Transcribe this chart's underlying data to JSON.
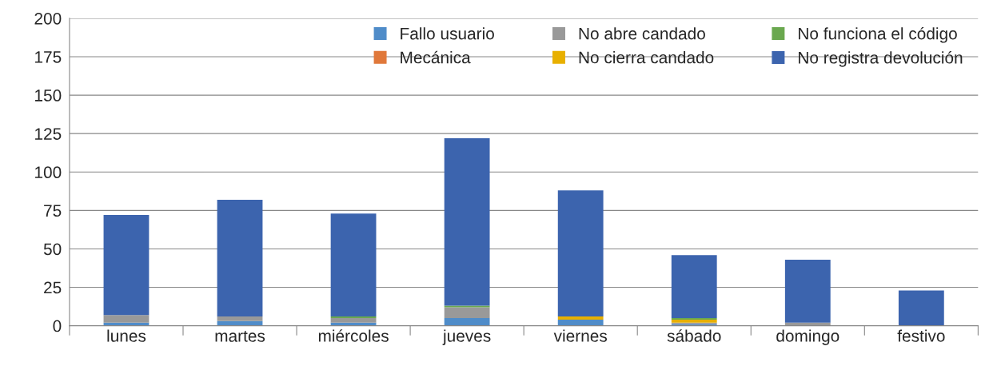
{
  "chart_data": {
    "type": "bar",
    "stacked": true,
    "categories": [
      "lunes",
      "martes",
      "miércoles",
      "jueves",
      "viernes",
      "sábado",
      "domingo",
      "festivo"
    ],
    "series": [
      {
        "name": "Fallo usuario",
        "color": "#4f8cc9",
        "values": [
          2,
          3,
          2,
          5,
          4,
          1,
          0,
          0
        ]
      },
      {
        "name": "Mecánica",
        "color": "#e0783a",
        "values": [
          0,
          0,
          0,
          0,
          0,
          0,
          0,
          0
        ]
      },
      {
        "name": "No abre candado",
        "color": "#999999",
        "values": [
          5,
          3,
          3,
          7,
          0,
          1,
          2,
          0
        ]
      },
      {
        "name": "No cierra candado",
        "color": "#e8b000",
        "values": [
          0,
          0,
          0,
          0,
          2,
          2,
          0,
          0
        ]
      },
      {
        "name": "No funciona el código",
        "color": "#6aa84f",
        "values": [
          0,
          0,
          1,
          1,
          0,
          1,
          0,
          0
        ]
      },
      {
        "name": "No registra devolución",
        "color": "#3c64ae",
        "values": [
          65,
          76,
          67,
          109,
          82,
          41,
          41,
          23
        ]
      }
    ],
    "ylim": [
      0,
      200
    ],
    "yticks": [
      0,
      25,
      50,
      75,
      100,
      125,
      150,
      175,
      200
    ],
    "grid": "y",
    "legend": "top right"
  }
}
